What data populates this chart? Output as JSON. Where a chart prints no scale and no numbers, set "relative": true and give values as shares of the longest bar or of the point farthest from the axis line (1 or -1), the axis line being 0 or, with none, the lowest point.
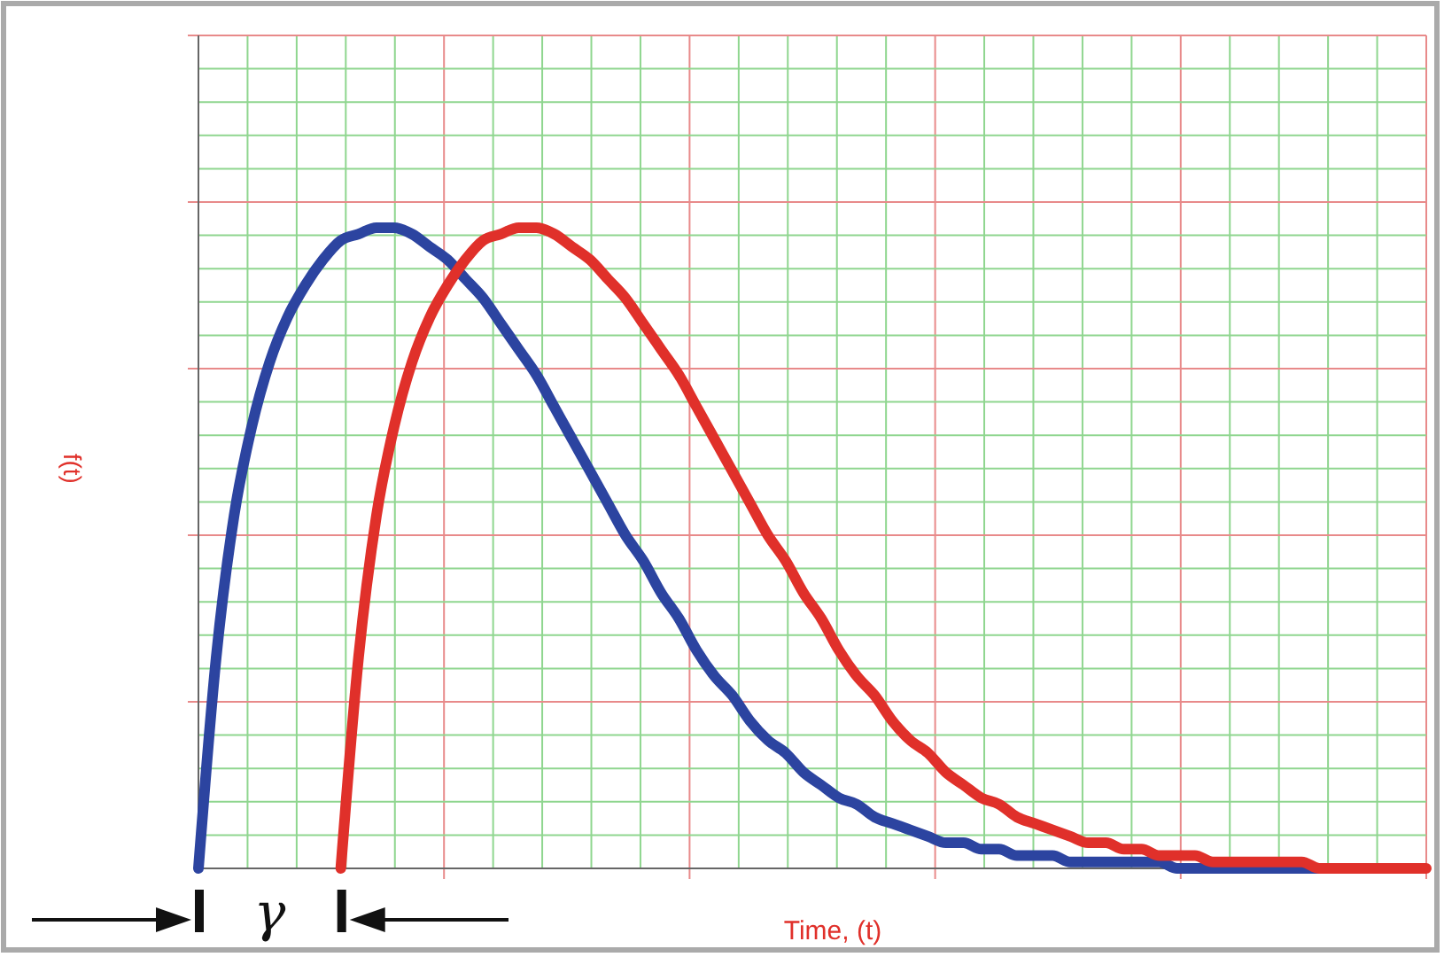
{
  "chart_data": {
    "type": "line",
    "relative": true,
    "xlabel": "Time, (t)",
    "ylabel": "f(t)",
    "grid": true,
    "line_style": "solid",
    "annotations": [
      "γ"
    ],
    "categories": [
      null,
      null,
      null,
      null,
      null,
      null,
      null,
      null,
      null,
      null,
      null,
      null,
      null,
      null,
      null,
      null,
      null,
      null,
      null,
      null,
      null,
      null,
      null,
      null,
      null,
      null,
      null,
      null,
      null,
      null,
      null,
      null,
      null,
      null,
      null,
      null,
      null,
      null,
      null,
      null,
      null,
      null,
      null,
      null,
      null,
      null,
      null,
      null,
      null,
      null,
      null,
      null,
      null,
      null,
      null,
      null,
      null,
      null,
      null,
      null,
      null,
      null,
      null,
      null,
      null,
      null,
      null,
      null,
      null,
      null
    ],
    "series": [
      {
        "color": "#2c44a0",
        "values": [
          0,
          0.33,
          0.55,
          0.69,
          0.79,
          0.86,
          0.91,
          0.95,
          0.98,
          0.99,
          1,
          1,
          0.99,
          0.97,
          0.95,
          0.92,
          0.89,
          0.85,
          0.81,
          0.77,
          0.72,
          0.67,
          0.62,
          0.57,
          0.52,
          0.48,
          0.43,
          0.39,
          0.34,
          0.3,
          0.27,
          0.23,
          0.2,
          0.18,
          0.15,
          0.13,
          0.11,
          0.1,
          0.08,
          0.07,
          0.06,
          0.05,
          0.04,
          0.04,
          0.03,
          0.03,
          0.02,
          0.02,
          0.02,
          0.01,
          0.01,
          0.01,
          0.01,
          0.01,
          0.01,
          0,
          0,
          0,
          0,
          0,
          0,
          0,
          0,
          0,
          0,
          null,
          null,
          null,
          null,
          null
        ]
      },
      {
        "color": "#e0302a",
        "values": [
          null,
          null,
          null,
          null,
          null,
          null,
          null,
          null,
          0,
          0.33,
          0.55,
          0.69,
          0.79,
          0.86,
          0.91,
          0.95,
          0.98,
          0.99,
          1,
          1,
          0.99,
          0.97,
          0.95,
          0.92,
          0.89,
          0.85,
          0.81,
          0.77,
          0.72,
          0.67,
          0.62,
          0.57,
          0.52,
          0.48,
          0.43,
          0.39,
          0.34,
          0.3,
          0.27,
          0.23,
          0.2,
          0.18,
          0.15,
          0.13,
          0.11,
          0.1,
          0.08,
          0.07,
          0.06,
          0.05,
          0.04,
          0.04,
          0.03,
          0.03,
          0.02,
          0.02,
          0.02,
          0.01,
          0.01,
          0.01,
          0.01,
          0.01,
          0.01,
          0,
          0,
          0,
          0,
          0,
          0,
          0
        ]
      }
    ]
  }
}
